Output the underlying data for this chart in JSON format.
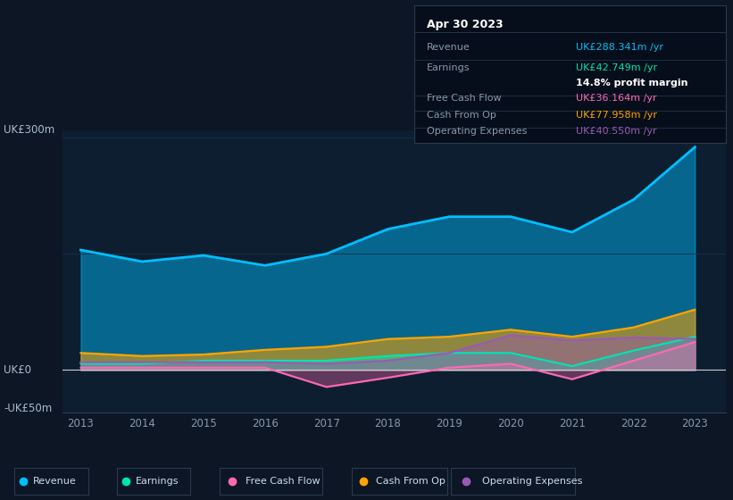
{
  "years": [
    2013,
    2014,
    2015,
    2016,
    2017,
    2018,
    2019,
    2020,
    2021,
    2022,
    2023
  ],
  "revenue": [
    155,
    140,
    148,
    135,
    150,
    182,
    198,
    198,
    178,
    220,
    288
  ],
  "earnings": [
    8,
    8,
    12,
    12,
    12,
    18,
    22,
    22,
    5,
    25,
    43
  ],
  "free_cash_flow": [
    3,
    3,
    3,
    3,
    -22,
    -10,
    3,
    8,
    -12,
    12,
    36
  ],
  "cash_from_op": [
    22,
    18,
    20,
    26,
    30,
    40,
    43,
    52,
    43,
    55,
    78
  ],
  "operating_exp": [
    10,
    10,
    10,
    10,
    8,
    12,
    22,
    45,
    38,
    42,
    40
  ],
  "bg_color": "#0c1624",
  "chart_bg": "#0d1e30",
  "revenue_color": "#00bfff",
  "earnings_color": "#00e5b0",
  "fcf_color": "#ff69b4",
  "cashop_color": "#ffa500",
  "opex_color": "#9b59b6",
  "zero_line_color": "#cccccc",
  "grid_color": "#1a3050",
  "ylabel_300": "UK£300m",
  "ylabel_0": "UK£0",
  "ylabel_neg50": "-UK£50m",
  "tooltip_date": "Apr 30 2023",
  "tooltip_revenue_label": "Revenue",
  "tooltip_revenue_value": "UK£288.341m /yr",
  "tooltip_earnings_label": "Earnings",
  "tooltip_earnings_value": "UK£42.749m /yr",
  "tooltip_margin": "14.8% profit margin",
  "tooltip_fcf_label": "Free Cash Flow",
  "tooltip_fcf_value": "UK£36.164m /yr",
  "tooltip_cashop_label": "Cash From Op",
  "tooltip_cashop_value": "UK£77.958m /yr",
  "tooltip_opex_label": "Operating Expenses",
  "tooltip_opex_value": "UK£40.550m /yr",
  "legend_items": [
    "Revenue",
    "Earnings",
    "Free Cash Flow",
    "Cash From Op",
    "Operating Expenses"
  ]
}
